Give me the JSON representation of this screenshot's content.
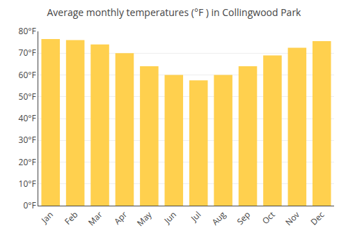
{
  "chart_data": {
    "type": "bar",
    "title": "Average monthly temperatures (°F ) in Collingwood Park",
    "categories": [
      "Jan",
      "Feb",
      "Mar",
      "Apr",
      "May",
      "Jun",
      "Jul",
      "Aug",
      "Sep",
      "Oct",
      "Nov",
      "Dec"
    ],
    "values": [
      76.5,
      76.0,
      74.0,
      70.0,
      64.0,
      60.0,
      57.5,
      60.0,
      64.0,
      69.0,
      72.5,
      75.5
    ],
    "color": "#FFD04E",
    "ylim": [
      0,
      80
    ],
    "yticks": [
      {
        "value": 0,
        "label": "0°F"
      },
      {
        "value": 10,
        "label": "10°F"
      },
      {
        "value": 20,
        "label": "20°F"
      },
      {
        "value": 30,
        "label": "30°F"
      },
      {
        "value": 40,
        "label": "40°F"
      },
      {
        "value": 50,
        "label": "50°F"
      },
      {
        "value": 60,
        "label": "60°F"
      },
      {
        "value": 70,
        "label": "70°F"
      },
      {
        "value": 80,
        "label": "80°F"
      }
    ],
    "grid": true
  }
}
